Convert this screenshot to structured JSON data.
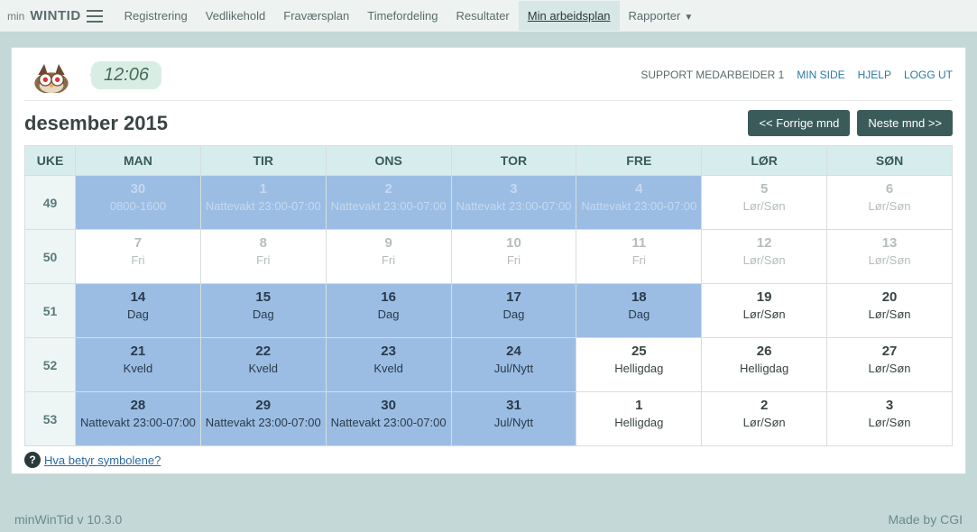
{
  "brand": {
    "min": "min",
    "wt": "WINTID"
  },
  "nav": {
    "items": [
      {
        "label": "Registrering"
      },
      {
        "label": "Vedlikehold"
      },
      {
        "label": "Fraværsplan"
      },
      {
        "label": "Timefordeling"
      },
      {
        "label": "Resultater"
      },
      {
        "label": "Min arbeidsplan",
        "active": true
      },
      {
        "label": "Rapporter",
        "caret": true
      }
    ]
  },
  "clock": "12:06",
  "user_line": {
    "user": "SUPPORT MEDARBEIDER 1",
    "links": [
      "MIN SIDE",
      "HJELP",
      "LOGG UT"
    ]
  },
  "month_title": "desember 2015",
  "buttons": {
    "prev": "<< Forrige mnd",
    "next": "Neste mnd >>"
  },
  "headers": [
    "UKE",
    "MAN",
    "TIR",
    "ONS",
    "TOR",
    "FRE",
    "LØR",
    "SØN"
  ],
  "weeks": [
    {
      "no": "49",
      "days": [
        {
          "num": "30",
          "lbl": "0800-1600",
          "cls": "shade-blue dim"
        },
        {
          "num": "1",
          "lbl": "Nattevakt 23:00-07:00",
          "cls": "shade-blue dim"
        },
        {
          "num": "2",
          "lbl": "Nattevakt 23:00-07:00",
          "cls": "shade-blue dim"
        },
        {
          "num": "3",
          "lbl": "Nattevakt 23:00-07:00",
          "cls": "shade-blue dim"
        },
        {
          "num": "4",
          "lbl": "Nattevakt 23:00-07:00",
          "cls": "shade-blue dim"
        },
        {
          "num": "5",
          "lbl": "Lør/Søn",
          "cls": "shade-grey"
        },
        {
          "num": "6",
          "lbl": "Lør/Søn",
          "cls": "shade-grey"
        }
      ]
    },
    {
      "no": "50",
      "days": [
        {
          "num": "7",
          "lbl": "Fri",
          "cls": "shade-grey"
        },
        {
          "num": "8",
          "lbl": "Fri",
          "cls": "shade-grey"
        },
        {
          "num": "9",
          "lbl": "Fri",
          "cls": "shade-grey"
        },
        {
          "num": "10",
          "lbl": "Fri",
          "cls": "shade-grey"
        },
        {
          "num": "11",
          "lbl": "Fri",
          "cls": "shade-grey"
        },
        {
          "num": "12",
          "lbl": "Lør/Søn",
          "cls": "shade-grey"
        },
        {
          "num": "13",
          "lbl": "Lør/Søn",
          "cls": "shade-grey"
        }
      ]
    },
    {
      "no": "51",
      "days": [
        {
          "num": "14",
          "lbl": "Dag",
          "cls": "shade-blue"
        },
        {
          "num": "15",
          "lbl": "Dag",
          "cls": "shade-blue"
        },
        {
          "num": "16",
          "lbl": "Dag",
          "cls": "shade-blue"
        },
        {
          "num": "17",
          "lbl": "Dag",
          "cls": "shade-blue"
        },
        {
          "num": "18",
          "lbl": "Dag",
          "cls": "shade-blue"
        },
        {
          "num": "19",
          "lbl": "Lør/Søn",
          "cls": ""
        },
        {
          "num": "20",
          "lbl": "Lør/Søn",
          "cls": ""
        }
      ]
    },
    {
      "no": "52",
      "days": [
        {
          "num": "21",
          "lbl": "Kveld",
          "cls": "shade-blue"
        },
        {
          "num": "22",
          "lbl": "Kveld",
          "cls": "shade-blue"
        },
        {
          "num": "23",
          "lbl": "Kveld",
          "cls": "shade-blue"
        },
        {
          "num": "24",
          "lbl": "Jul/Nytt",
          "cls": "shade-blue"
        },
        {
          "num": "25",
          "lbl": "Helligdag",
          "cls": ""
        },
        {
          "num": "26",
          "lbl": "Helligdag",
          "cls": ""
        },
        {
          "num": "27",
          "lbl": "Lør/Søn",
          "cls": ""
        }
      ]
    },
    {
      "no": "53",
      "days": [
        {
          "num": "28",
          "lbl": "Nattevakt 23:00-07:00",
          "cls": "shade-blue"
        },
        {
          "num": "29",
          "lbl": "Nattevakt 23:00-07:00",
          "cls": "shade-blue"
        },
        {
          "num": "30",
          "lbl": "Nattevakt 23:00-07:00",
          "cls": "shade-blue"
        },
        {
          "num": "31",
          "lbl": "Jul/Nytt",
          "cls": "shade-blue"
        },
        {
          "num": "1",
          "lbl": "Helligdag",
          "cls": ""
        },
        {
          "num": "2",
          "lbl": "Lør/Søn",
          "cls": ""
        },
        {
          "num": "3",
          "lbl": "Lør/Søn",
          "cls": ""
        }
      ]
    }
  ],
  "legend_text": "Hva betyr symbolene?",
  "footer": {
    "left": "minWinTid v 10.3.0",
    "right": "Made by CGI"
  }
}
